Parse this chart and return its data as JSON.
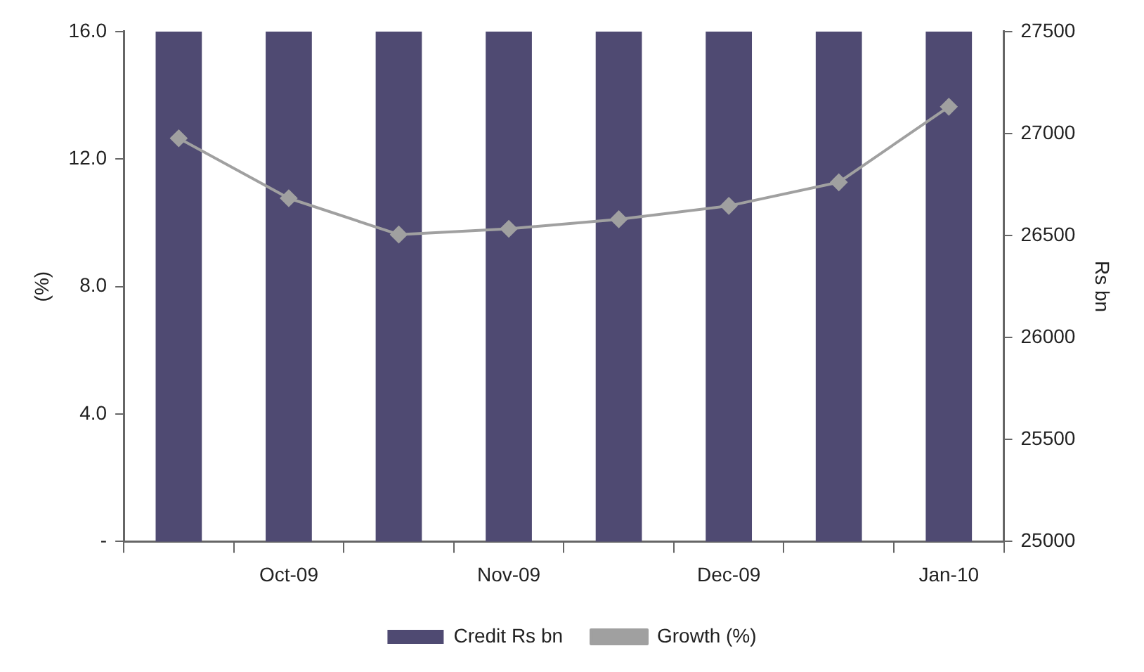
{
  "chart_data": {
    "type": "bar",
    "categories": [
      null,
      "Oct-09",
      null,
      "Nov-09",
      null,
      "Dec-09",
      null,
      "Jan-10"
    ],
    "series": [
      {
        "name": "Credit Rs bn",
        "axis": "y2",
        "color": "#4f4a72",
        "values": [
          27500,
          27500,
          27500,
          27500,
          27500,
          27500,
          27500,
          27500
        ]
      },
      {
        "name": "Growth (%)",
        "type": "line",
        "color": "#a0a0a0",
        "marker": "diamond",
        "values": [
          12.65,
          10.77,
          9.63,
          9.81,
          10.11,
          10.53,
          11.27,
          13.64
        ]
      }
    ],
    "ylabel": "(%)",
    "y2label": "Rs bn",
    "ylim": [
      0,
      16
    ],
    "yticks": [
      {
        "value": 0,
        "label": "-"
      },
      {
        "value": 4,
        "label": "4.0"
      },
      {
        "value": 8,
        "label": "8.0"
      },
      {
        "value": 12,
        "label": "12.0"
      },
      {
        "value": 16,
        "label": "16.0"
      }
    ],
    "y2lim": [
      25000,
      27500
    ],
    "y2ticks": [
      25000,
      25500,
      26000,
      26500,
      27000,
      27500
    ],
    "grid": false,
    "legend": "bottom"
  }
}
